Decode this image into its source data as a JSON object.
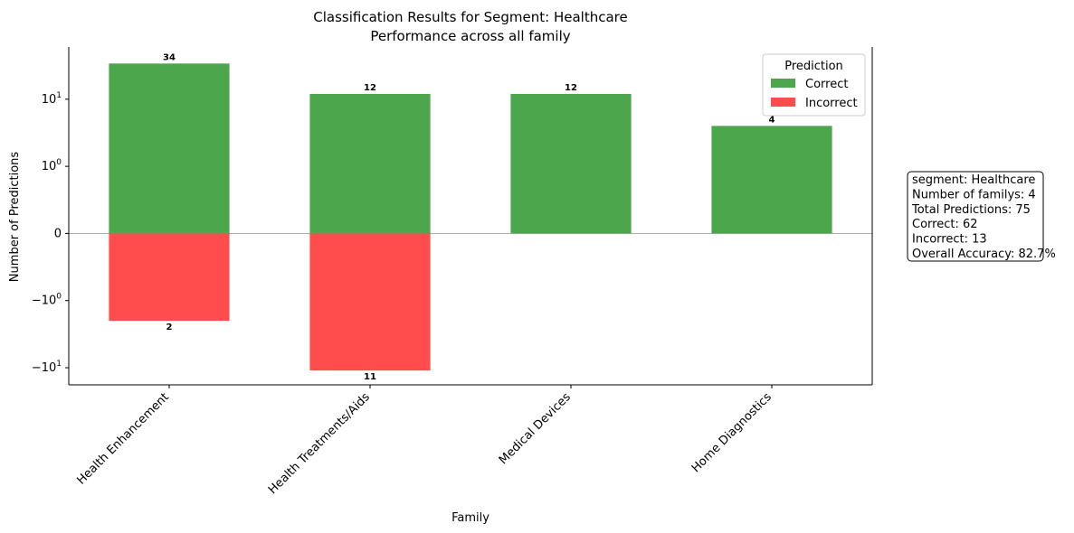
{
  "chart_data": {
    "type": "bar",
    "title": "Classification Results for Segment: Healthcare",
    "subtitle": "Performance across all family",
    "xlabel": "Family",
    "ylabel": "Number of Predictions",
    "y_scale": "symlog",
    "ylim": [
      -18,
      60
    ],
    "y_ticks": [
      {
        "value": 10,
        "label": "10^1"
      },
      {
        "value": 1,
        "label": "10^0"
      },
      {
        "value": 0,
        "label": "0"
      },
      {
        "value": -1,
        "label": "−10^0"
      },
      {
        "value": -10,
        "label": "−10^1"
      }
    ],
    "categories": [
      "Health Enhancement",
      "Health Treatments/Aids",
      "Medical Devices",
      "Home Diagnostics"
    ],
    "series": [
      {
        "name": "Correct",
        "color": "#4ca64c",
        "values": [
          34,
          12,
          12,
          4
        ],
        "labels": [
          "34",
          "12",
          "12",
          "4"
        ]
      },
      {
        "name": "Incorrect",
        "color": "#ff4d4d",
        "values": [
          -2,
          -11,
          0,
          0
        ],
        "labels": [
          "2",
          "11",
          "",
          ""
        ]
      }
    ],
    "legend": {
      "title": "Prediction",
      "placement": "top-right"
    },
    "grid": false,
    "zero_line": true
  },
  "stats_box": {
    "lines": [
      "segment: Healthcare",
      "Number of familys: 4",
      "Total Predictions: 75",
      "Correct: 62",
      "Incorrect: 13",
      "Overall Accuracy: 82.7%"
    ]
  }
}
